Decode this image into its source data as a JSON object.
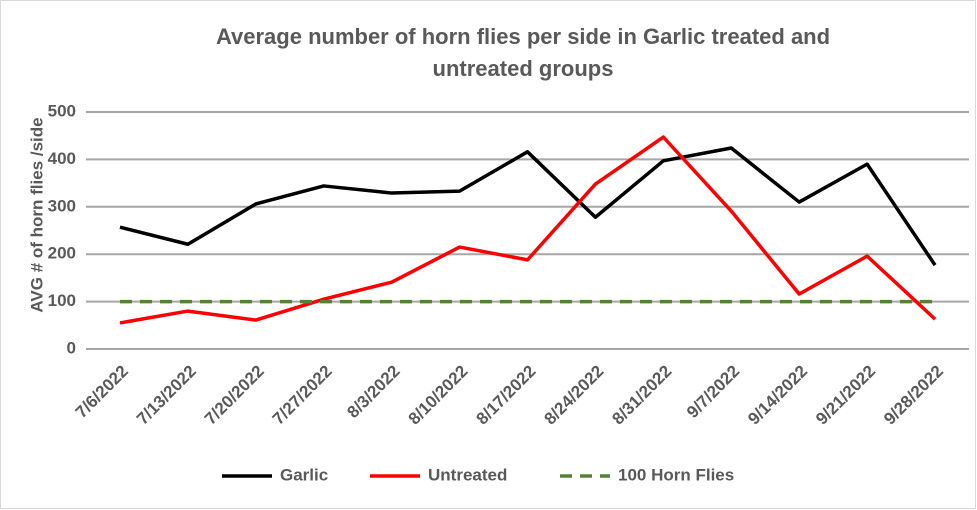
{
  "chart_data": {
    "type": "line",
    "title_lines": [
      "Average number of horn flies per side in Garlic treated and",
      "untreated groups"
    ],
    "y_label": "AVG # of horn flies /side",
    "categories": [
      "7/6/2022",
      "7/13/2022",
      "7/20/2022",
      "7/27/2022",
      "8/3/2022",
      "8/10/2022",
      "8/17/2022",
      "8/24/2022",
      "8/31/2022",
      "9/7/2022",
      "9/14/2022",
      "9/21/2022",
      "9/28/2022"
    ],
    "series": [
      {
        "name": "Garlic",
        "color": "#000000",
        "dashed": false,
        "values": [
          257,
          221,
          306,
          344,
          329,
          333,
          416,
          278,
          397,
          424,
          310,
          390,
          177
        ]
      },
      {
        "name": "Untreated",
        "color": "#ff0000",
        "dashed": false,
        "values": [
          55,
          80,
          61,
          105,
          141,
          215,
          188,
          348,
          447,
          291,
          116,
          196,
          63
        ]
      },
      {
        "name": "100 Horn Flies",
        "color": "#548235",
        "dashed": true,
        "values": [
          100,
          100,
          100,
          100,
          100,
          100,
          100,
          100,
          100,
          100,
          100,
          100,
          100
        ]
      }
    ],
    "ylim": [
      0,
      500
    ],
    "yticks": [
      0,
      100,
      200,
      300,
      400,
      500
    ],
    "grid": true,
    "legend": "bottom"
  }
}
